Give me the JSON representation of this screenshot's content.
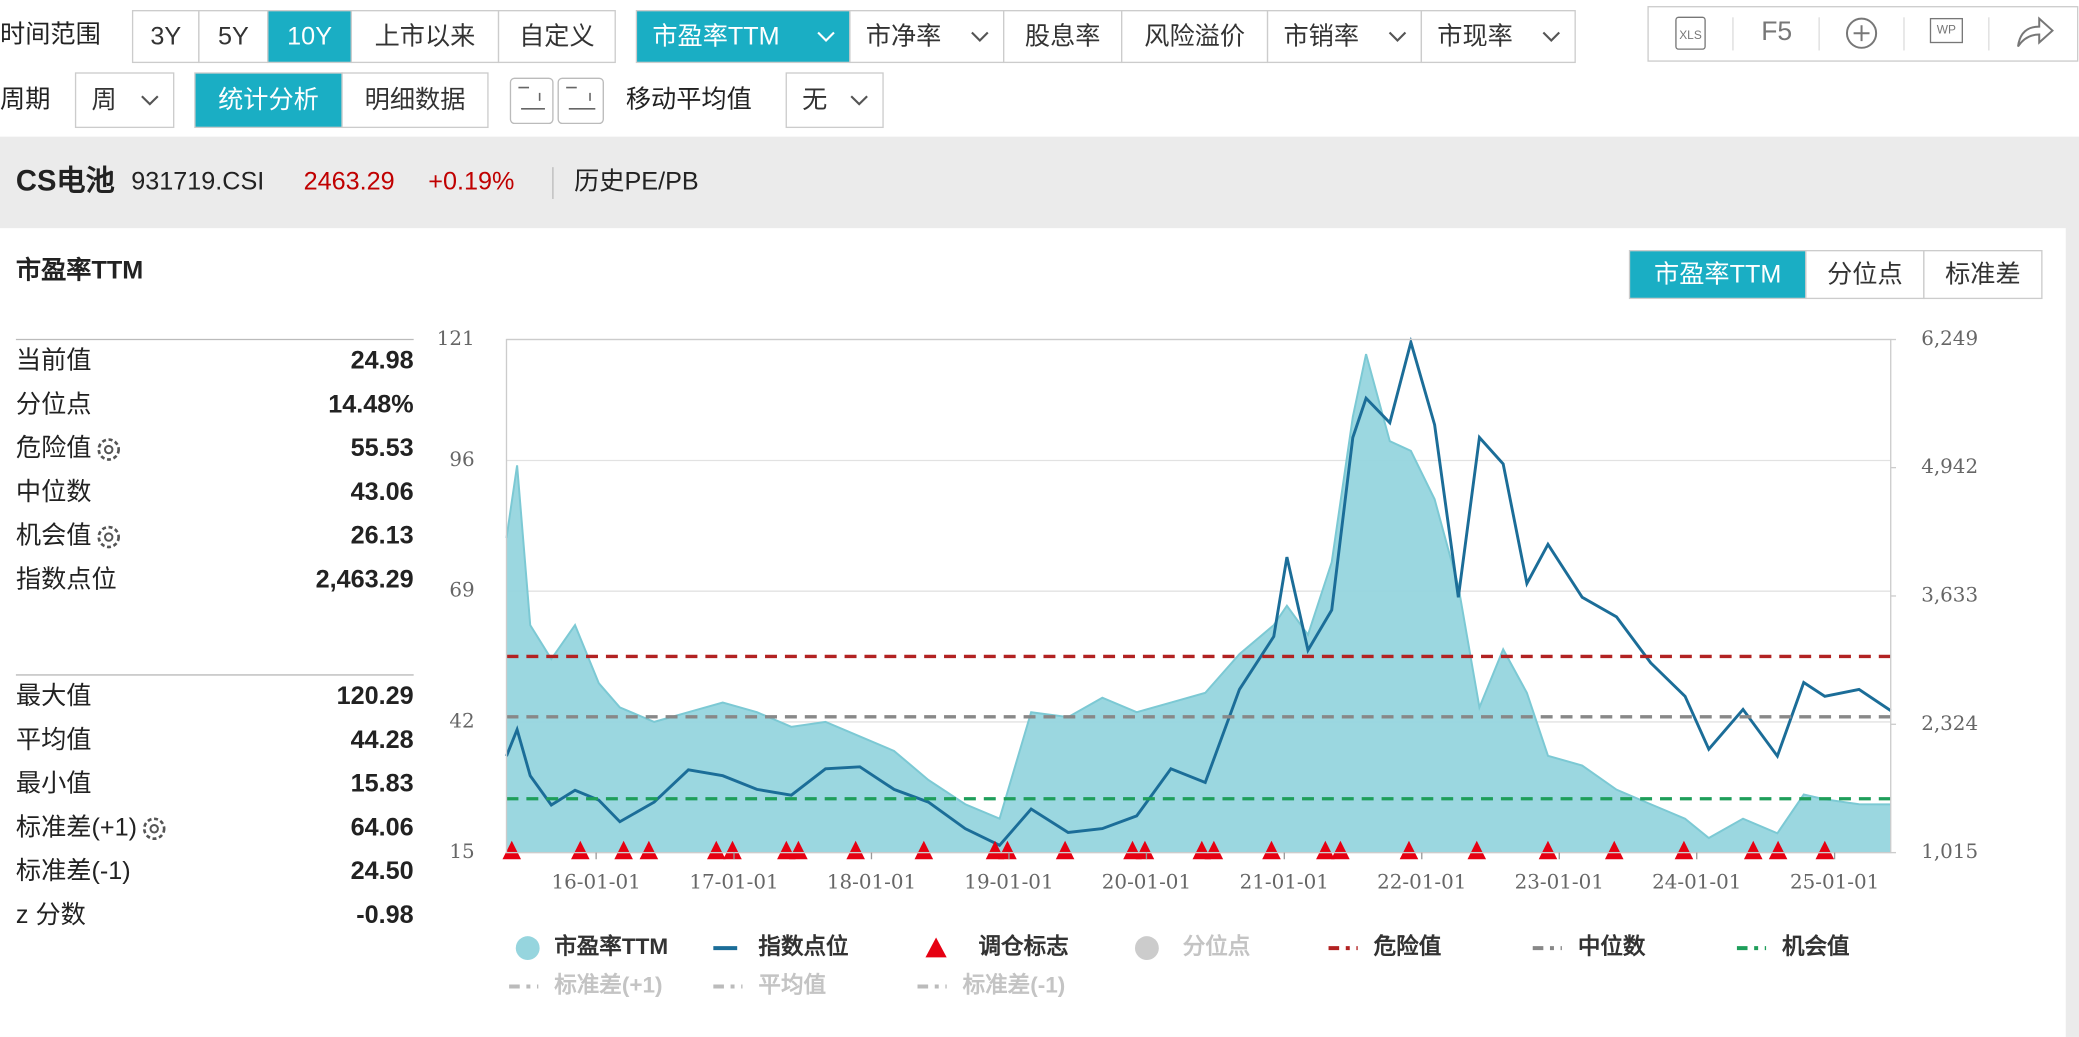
{
  "toolbar": {
    "time_range_label": "时间范围",
    "time_ranges": [
      "3Y",
      "5Y",
      "10Y",
      "上市以来",
      "自定义"
    ],
    "active_time_range": "10Y",
    "metrics": [
      {
        "label": "市盈率TTM",
        "dropdown": true
      },
      {
        "label": "市净率",
        "dropdown": true
      },
      {
        "label": "股息率",
        "dropdown": false
      },
      {
        "label": "风险溢价",
        "dropdown": false
      },
      {
        "label": "市销率",
        "dropdown": true
      },
      {
        "label": "市现率",
        "dropdown": true
      }
    ],
    "active_metric": "市盈率TTM",
    "period_label": "周期",
    "period": "周",
    "views": [
      "统计分析",
      "明细数据"
    ],
    "active_view": "统计分析",
    "moving_average_label": "移动平均值",
    "moving_average": "无",
    "refresh": "F5"
  },
  "header": {
    "name": "CS电池",
    "code": "931719.CSI",
    "price": "2463.29",
    "change": "+0.19%",
    "link": "历史PE/PB"
  },
  "panel": {
    "title": "市盈率TTM",
    "tabs": [
      "市盈率TTM",
      "分位点",
      "标准差"
    ],
    "active_tab": "市盈率TTM",
    "stats_groups": [
      [
        {
          "name": "当前值",
          "value": "24.98"
        },
        {
          "name": "分位点",
          "value": "14.48%"
        },
        {
          "name": "危险值",
          "value": "55.53",
          "settings": true
        },
        {
          "name": "中位数",
          "value": "43.06"
        },
        {
          "name": "机会值",
          "value": "26.13",
          "settings": true
        },
        {
          "name": "指数点位",
          "value": "2,463.29"
        }
      ],
      [
        {
          "name": "最大值",
          "value": "120.29"
        },
        {
          "name": "平均值",
          "value": "44.28"
        },
        {
          "name": "最小值",
          "value": "15.83"
        },
        {
          "name": "标准差(+1)",
          "value": "64.06",
          "settings": true
        },
        {
          "name": "标准差(-1)",
          "value": "24.50"
        },
        {
          "name": "z 分数",
          "value": "-0.98"
        }
      ]
    ]
  },
  "chart_data": {
    "type": "line",
    "x": [
      "15-05-08",
      "15-06-05",
      "15-07-10",
      "15-09-04",
      "15-11-06",
      "16-01-08",
      "16-03-04",
      "16-06-03",
      "16-09-02",
      "16-12-02",
      "17-03-03",
      "17-06-02",
      "17-09-01",
      "17-12-01",
      "18-03-02",
      "18-06-01",
      "18-09-07",
      "18-12-07",
      "19-03-01",
      "19-06-07",
      "19-09-06",
      "19-12-06",
      "20-03-06",
      "20-06-05",
      "20-09-04",
      "20-12-04",
      "21-01-08",
      "21-03-05",
      "21-05-07",
      "21-07-02",
      "21-08-06",
      "21-10-08",
      "21-12-03",
      "22-02-04",
      "22-04-08",
      "22-06-03",
      "22-08-05",
      "22-10-07",
      "22-12-02",
      "23-03-03",
      "23-06-02",
      "23-09-01",
      "23-12-01",
      "24-02-02",
      "24-05-03",
      "24-08-02",
      "24-10-11",
      "24-12-06",
      "25-03-07",
      "25-05-30"
    ],
    "series": [
      {
        "name": "市盈率TTM",
        "kind": "area",
        "axis": "y",
        "color": "#96d5de",
        "values": [
          80,
          95,
          62,
          55,
          62,
          50,
          45,
          42,
          44,
          46,
          44,
          41,
          42,
          39,
          36,
          30,
          25,
          22,
          44,
          43,
          47,
          44,
          46,
          48,
          56,
          62,
          66,
          60,
          75,
          105,
          118,
          100,
          98,
          88,
          70,
          45,
          57,
          48,
          35,
          33,
          28,
          25,
          22,
          18,
          22,
          19,
          27,
          26,
          25,
          24.98
        ]
      },
      {
        "name": "指数点位",
        "kind": "line",
        "axis": "y2",
        "color": "#1b6d98",
        "values": [
          2000,
          2270,
          1800,
          1500,
          1650,
          1550,
          1330,
          1530,
          1860,
          1800,
          1660,
          1600,
          1870,
          1890,
          1660,
          1530,
          1260,
          1090,
          1460,
          1220,
          1260,
          1390,
          1870,
          1730,
          2680,
          3220,
          4030,
          3080,
          3490,
          5250,
          5650,
          5400,
          6220,
          5380,
          3620,
          5250,
          4980,
          3760,
          4160,
          3620,
          3420,
          2950,
          2610,
          2070,
          2475,
          2000,
          2750,
          2610,
          2680,
          2463.29
        ]
      }
    ],
    "events": {
      "name": "调仓标志",
      "color": "#e60012",
      "x": [
        "15-05-22",
        "15-11-20",
        "16-03-14",
        "16-05-20",
        "16-11-15",
        "16-12-28",
        "17-05-20",
        "17-06-21",
        "17-11-20",
        "18-05-20",
        "18-11-25",
        "18-12-28",
        "19-05-30",
        "19-11-25",
        "19-12-28",
        "20-05-27",
        "20-06-28",
        "20-11-28",
        "21-04-20",
        "21-05-30",
        "21-11-28",
        "22-05-27",
        "22-12-02",
        "23-05-27",
        "23-11-28",
        "24-05-30",
        "24-08-04",
        "24-12-06"
      ]
    },
    "reference_lines": [
      {
        "name": "分位点",
        "visible": false,
        "color": "#cccccc"
      },
      {
        "name": "危险值",
        "value": 55.53,
        "visible": true,
        "color": "#b22222"
      },
      {
        "name": "中位数",
        "value": 43.06,
        "visible": true,
        "color": "#888888"
      },
      {
        "name": "机会值",
        "value": 26.13,
        "visible": true,
        "color": "#1e9e5a"
      },
      {
        "name": "标准差(+1)",
        "value": 64.06,
        "visible": false,
        "color": "#bbbbbb"
      },
      {
        "name": "平均值",
        "value": 44.28,
        "visible": false,
        "color": "#bbbbbb"
      },
      {
        "name": "标准差(-1)",
        "value": 24.5,
        "visible": false,
        "color": "#bbbbbb"
      }
    ],
    "xlim": [
      "15-05-08",
      "25-05-30"
    ],
    "xticks": [
      "16-01-01",
      "17-01-01",
      "18-01-01",
      "19-01-01",
      "20-01-01",
      "21-01-01",
      "22-01-01",
      "23-01-01",
      "24-01-01",
      "25-01-01"
    ],
    "ylim": [
      15,
      121
    ],
    "yticks": [
      15,
      42,
      69,
      96,
      121
    ],
    "y2lim": [
      1015,
      6249
    ],
    "y2ticks": [
      {
        "value": 1015,
        "label": "1,015"
      },
      {
        "value": 2324,
        "label": "2,324"
      },
      {
        "value": 3633,
        "label": "3,633"
      },
      {
        "value": 4942,
        "label": "4,942"
      },
      {
        "value": 6249,
        "label": "6,249"
      }
    ],
    "grid": true
  }
}
